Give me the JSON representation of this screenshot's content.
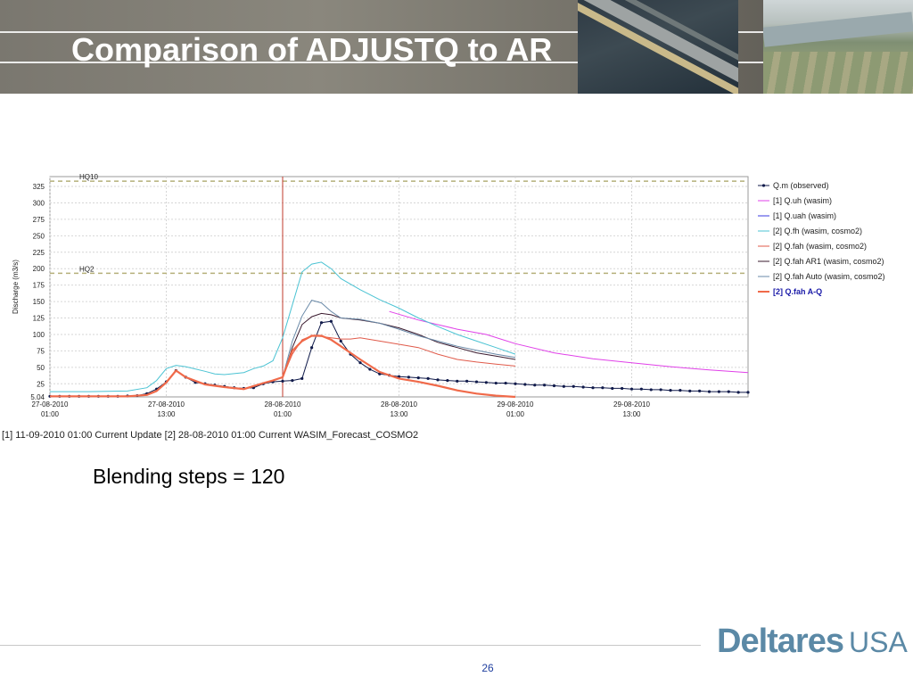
{
  "slide": {
    "title": "Comparison of ADJUSTQ to AR",
    "caption": "[1] 11-09-2010 01:00 Current Update [2] 28-08-2010 01:00 Current WASIM_Forecast_COSMO2",
    "blending_text": "Blending steps = 120",
    "logo_brand": "Deltares",
    "logo_suffix": "USA",
    "page_number": "26",
    "logo_color": "#5b89a6"
  },
  "chart_data": {
    "type": "line",
    "ylabel": "Discharge (m3/s)",
    "ylim": [
      5.04,
      340
    ],
    "yticks": [
      5.04,
      25,
      50,
      75,
      100,
      125,
      150,
      175,
      200,
      225,
      250,
      275,
      300,
      325
    ],
    "x_unit": "hours since 27-08-2010 01:00",
    "xlim": [
      0,
      72
    ],
    "xticks": [
      {
        "x": 0,
        "label": "27-08-2010",
        "sub": "01:00"
      },
      {
        "x": 12,
        "label": "27-08-2010",
        "sub": "13:00"
      },
      {
        "x": 24,
        "label": "28-08-2010",
        "sub": "01:00"
      },
      {
        "x": 36,
        "label": "28-08-2010",
        "sub": "13:00"
      },
      {
        "x": 48,
        "label": "29-08-2010",
        "sub": "01:00"
      },
      {
        "x": 60,
        "label": "29-08-2010",
        "sub": "13:00"
      }
    ],
    "grid": true,
    "legend_position": "right",
    "forecast_time_x": 24,
    "thresholds": [
      {
        "label": "HQ10",
        "y": 333
      },
      {
        "label": "HQ2",
        "y": 193
      }
    ],
    "series": [
      {
        "name": "Q.m  (observed)",
        "color": "#101a4a",
        "marker": true,
        "bold": false,
        "x": [
          0,
          1,
          2,
          3,
          4,
          5,
          6,
          7,
          8,
          9,
          10,
          11,
          12,
          13,
          14,
          15,
          16,
          17,
          18,
          19,
          20,
          21,
          22,
          23,
          24,
          25,
          26,
          27,
          28,
          29,
          30,
          31,
          32,
          33,
          34,
          35,
          36,
          37,
          38,
          39,
          40,
          41,
          42,
          43,
          44,
          45,
          46,
          47,
          48,
          49,
          50,
          51,
          52,
          53,
          54,
          55,
          56,
          57,
          58,
          59,
          60,
          61,
          62,
          63,
          64,
          65,
          66,
          67,
          68,
          69,
          70,
          71,
          72
        ],
        "y": [
          6,
          6,
          6,
          6,
          6,
          6,
          6,
          6,
          6.5,
          7,
          10,
          17,
          28,
          45,
          35,
          27,
          25,
          23,
          21,
          19,
          18,
          19,
          25,
          28,
          29,
          30,
          33,
          80,
          118,
          120,
          90,
          70,
          57,
          47,
          40,
          38,
          36,
          35,
          34,
          33,
          31,
          30,
          29,
          29,
          28,
          27,
          26,
          26,
          25,
          24,
          23,
          23,
          22,
          21,
          21,
          20,
          19,
          19,
          18,
          18,
          17,
          17,
          16,
          16,
          15,
          15,
          14,
          14,
          13,
          13,
          13,
          12,
          12
        ]
      },
      {
        "name": "[1] Q.uh  (wasim)",
        "color": "#e040e8",
        "marker": false,
        "bold": false,
        "x": [
          35,
          38,
          42,
          45,
          48,
          52,
          56,
          60,
          64,
          68,
          72
        ],
        "y": [
          135,
          122,
          108,
          100,
          86,
          72,
          63,
          57,
          51,
          46,
          42
        ]
      },
      {
        "name": "[1] Q.uah  (wasim)",
        "color": "#3a3ae0",
        "marker": false,
        "bold": false,
        "x": [],
        "y": []
      },
      {
        "name": "[2] Q.fh  (wasim, cosmo2)",
        "color": "#4bc3d3",
        "marker": false,
        "bold": false,
        "x": [
          0,
          4,
          8,
          10,
          11,
          12,
          13,
          14,
          16,
          17,
          18,
          20,
          21,
          22,
          23,
          24,
          25,
          26,
          27,
          28,
          29,
          30,
          32,
          34,
          36,
          38,
          40,
          42,
          44,
          46,
          48
        ],
        "y": [
          13,
          13,
          14,
          19,
          30,
          48,
          53,
          51,
          44,
          40,
          39,
          42,
          48,
          52,
          60,
          95,
          145,
          195,
          207,
          210,
          200,
          185,
          168,
          153,
          140,
          125,
          112,
          100,
          90,
          80,
          70
        ]
      },
      {
        "name": "[2] Q.fah  (wasim, cosmo2)",
        "color": "#e05a4a",
        "marker": false,
        "bold": false,
        "x": [
          24,
          25,
          26,
          27,
          28,
          29,
          30,
          31,
          32,
          34,
          36,
          38,
          40,
          42,
          44,
          46,
          48
        ],
        "y": [
          35,
          70,
          92,
          98,
          97,
          95,
          93,
          93,
          95,
          90,
          85,
          80,
          70,
          62,
          58,
          55,
          52
        ]
      },
      {
        "name": "[2] Q.fah AR1  (wasim, cosmo2)",
        "color": "#3a1a2e",
        "marker": false,
        "bold": false,
        "x": [
          24,
          25,
          26,
          27,
          28,
          29,
          30,
          32,
          34,
          36,
          38,
          40,
          42,
          44,
          46,
          48
        ],
        "y": [
          35,
          80,
          115,
          127,
          132,
          130,
          125,
          122,
          117,
          110,
          100,
          88,
          80,
          72,
          67,
          62
        ]
      },
      {
        "name": "[2] Q.fah Auto  (wasim, cosmo2)",
        "color": "#6a8aa8",
        "marker": false,
        "bold": false,
        "x": [
          24,
          25,
          26,
          27,
          28,
          29,
          30,
          32,
          34,
          36,
          38,
          40,
          42,
          44,
          46,
          48
        ],
        "y": [
          35,
          90,
          128,
          152,
          148,
          135,
          125,
          123,
          117,
          108,
          98,
          90,
          82,
          76,
          70,
          65
        ]
      },
      {
        "name": "[2] Q.fah A-Q",
        "color": "#f06a4a",
        "marker": false,
        "bold": true,
        "x": [
          0,
          4,
          8,
          10,
          11,
          12,
          13,
          14,
          16,
          18,
          20,
          22,
          23,
          24,
          25,
          26,
          27,
          28,
          29,
          30,
          31,
          32,
          34,
          36,
          38,
          40,
          42,
          44,
          46,
          48
        ],
        "y": [
          6,
          6,
          6,
          8,
          14,
          27,
          45,
          35,
          24,
          20,
          17,
          26,
          30,
          35,
          75,
          90,
          98,
          98,
          92,
          82,
          72,
          62,
          43,
          33,
          28,
          22,
          15,
          10,
          7,
          5
        ]
      }
    ]
  }
}
